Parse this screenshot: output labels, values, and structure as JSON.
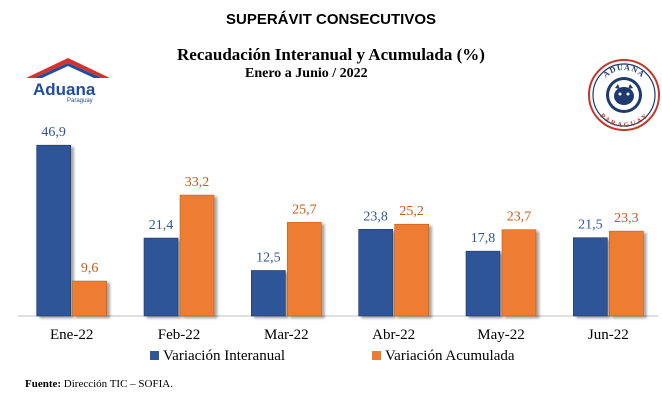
{
  "header": {
    "superavit_title": "SUPERÁVIT CONSECUTIVOS",
    "logo_name": "Aduana",
    "logo_sub": "Paraguay",
    "seal_top": "ADUANA",
    "seal_bottom": "PARAGUAY"
  },
  "chart_data": {
    "type": "bar",
    "title": "Recaudación Interanual y Acumulada (%)",
    "subtitle": "Enero a Junio / 2022",
    "categories": [
      "Ene-22",
      "Feb-22",
      "Mar-22",
      "Abr-22",
      "May-22",
      "Jun-22"
    ],
    "series": [
      {
        "name": "Variación Interanual",
        "values": [
          46.9,
          21.4,
          12.5,
          23.8,
          17.8,
          21.5
        ],
        "labels": [
          "46,9",
          "21,4",
          "12,5",
          "23,8",
          "17,8",
          "21,5"
        ],
        "color": "#2f5597",
        "label_color": "#2f5597"
      },
      {
        "name": "Variación Acumulada",
        "values": [
          9.6,
          33.2,
          25.7,
          25.2,
          23.7,
          23.3
        ],
        "labels": [
          "9,6",
          "33,2",
          "25,7",
          "25,2",
          "23,7",
          "23,3"
        ],
        "color": "#ed7d31",
        "label_color": "#c55a11"
      }
    ],
    "ylim": [
      0,
      50
    ],
    "xlabel": "",
    "ylabel": "",
    "legend_position": "bottom"
  },
  "footer": {
    "source_label": "Fuente:",
    "source_text": " Dirección TIC – SOFIA."
  }
}
